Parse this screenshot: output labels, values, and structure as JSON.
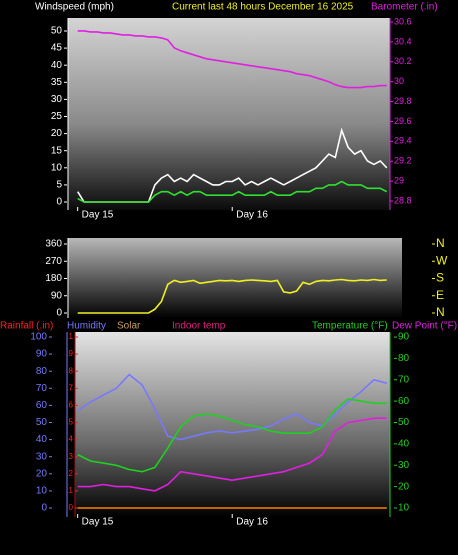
{
  "chart_data": [
    {
      "type": "line",
      "title": "Current last 48 hours December 16 2025",
      "y_label": "Windspeed (mph)",
      "y2_label": "Barometer (.in)",
      "x": [
        0,
        1,
        2,
        3,
        4,
        5,
        6,
        7,
        8,
        9,
        10,
        11,
        12,
        13,
        14,
        15,
        16,
        17,
        18,
        19,
        20,
        21,
        22,
        23,
        24,
        25,
        26,
        27,
        28,
        29,
        30,
        31,
        32,
        33,
        34,
        35,
        36,
        37,
        38,
        39,
        40,
        41,
        42,
        43,
        44,
        45,
        46,
        47,
        48
      ],
      "xlim": [
        -1.5,
        48.5
      ],
      "xticks": [
        {
          "value": 0,
          "label": "Day 15"
        },
        {
          "value": 24,
          "label": "Day 16"
        }
      ],
      "ylim": [
        0,
        50
      ],
      "yticks": [
        0,
        5,
        10,
        15,
        20,
        25,
        30,
        35,
        40,
        45,
        50
      ],
      "y2lim": [
        28.8,
        30.6
      ],
      "y2ticks": [
        28.8,
        29,
        29.2,
        29.4,
        29.6,
        29.8,
        30,
        30.2,
        30.4,
        30.6
      ],
      "series": [
        {
          "color": "#ffffff",
          "values": [
            3,
            0,
            0,
            0,
            0,
            0,
            0,
            0,
            0,
            0,
            0,
            0,
            5,
            7,
            8,
            6,
            7,
            6,
            8,
            7,
            6,
            5,
            5,
            6,
            6,
            7,
            5,
            6,
            5,
            6,
            7,
            6,
            5,
            6,
            7,
            8,
            9,
            10,
            12,
            14,
            13,
            21,
            16,
            14,
            15,
            12,
            11,
            12,
            10
          ]
        },
        {
          "color": "#30e030",
          "values": [
            1,
            0,
            0,
            0,
            0,
            0,
            0,
            0,
            0,
            0,
            0,
            0,
            2,
            3,
            3,
            2,
            3,
            2,
            3,
            3,
            2,
            2,
            2,
            2,
            2,
            3,
            2,
            2,
            2,
            2,
            3,
            2,
            2,
            2,
            3,
            3,
            3,
            4,
            4,
            5,
            5,
            6,
            5,
            5,
            5,
            4,
            4,
            4,
            3
          ]
        },
        {
          "color": "#e020e0",
          "axis": "y2",
          "values": [
            30.51,
            30.51,
            30.5,
            30.5,
            30.49,
            30.49,
            30.48,
            30.47,
            30.47,
            30.46,
            30.46,
            30.45,
            30.45,
            30.44,
            30.42,
            30.34,
            30.31,
            30.29,
            30.27,
            30.25,
            30.23,
            30.22,
            30.21,
            30.2,
            30.19,
            30.18,
            30.17,
            30.16,
            30.15,
            30.14,
            30.13,
            30.12,
            30.11,
            30.1,
            30.08,
            30.07,
            30.06,
            30.04,
            30.02,
            30,
            29.97,
            29.95,
            29.94,
            29.94,
            29.94,
            29.95,
            29.95,
            29.96,
            29.96
          ]
        }
      ]
    },
    {
      "type": "line",
      "x": [
        0,
        1,
        2,
        3,
        4,
        5,
        6,
        7,
        8,
        9,
        10,
        11,
        12,
        13,
        14,
        15,
        16,
        17,
        18,
        19,
        20,
        21,
        22,
        23,
        24,
        25,
        26,
        27,
        28,
        29,
        30,
        31,
        32,
        33,
        34,
        35,
        36,
        37,
        38,
        39,
        40,
        41,
        42,
        43,
        44,
        45,
        46,
        47,
        48
      ],
      "xlim": [
        -1.5,
        48.5
      ],
      "ylim": [
        0,
        360
      ],
      "yticks": [
        0,
        90,
        180,
        270,
        360
      ],
      "y2lim": [
        0,
        360
      ],
      "y2ticks": [
        {
          "value": 0,
          "label": "N"
        },
        {
          "value": 90,
          "label": "E"
        },
        {
          "value": 180,
          "label": "S"
        },
        {
          "value": 270,
          "label": "W"
        },
        {
          "value": 360,
          "label": "N"
        }
      ],
      "series": [
        {
          "color": "#f0f020",
          "values": [
            0,
            0,
            0,
            0,
            0,
            0,
            0,
            0,
            0,
            0,
            0,
            0,
            20,
            60,
            150,
            170,
            160,
            165,
            170,
            155,
            160,
            165,
            170,
            168,
            170,
            165,
            170,
            172,
            170,
            168,
            165,
            170,
            110,
            105,
            115,
            160,
            150,
            165,
            170,
            168,
            172,
            175,
            170,
            168,
            172,
            170,
            175,
            170,
            172
          ]
        }
      ]
    },
    {
      "type": "line",
      "x": [
        0,
        2,
        4,
        6,
        8,
        10,
        12,
        14,
        16,
        18,
        20,
        22,
        24,
        26,
        28,
        30,
        32,
        34,
        36,
        38,
        40,
        42,
        44,
        46,
        48
      ],
      "xlim": [
        -1.5,
        48.5
      ],
      "xticks": [
        {
          "value": 0,
          "label": "Day 15"
        },
        {
          "value": 24,
          "label": "Day 16"
        }
      ],
      "ylim": [
        0,
        100
      ],
      "yticks": [
        0,
        10,
        20,
        30,
        40,
        50,
        60,
        70,
        80,
        90,
        100
      ],
      "y2lim": [
        10,
        90
      ],
      "y2ticks": [
        10,
        20,
        30,
        40,
        50,
        60,
        70,
        80,
        90
      ],
      "y3lim": [
        0,
        1
      ],
      "y3ticks": [
        0,
        {
          "value": 0.1,
          "label": ".1"
        },
        {
          "value": 0.2,
          "label": ".2"
        },
        {
          "value": 0.3,
          "label": ".3"
        },
        {
          "value": 0.4,
          "label": ".4"
        },
        {
          "value": 0.5,
          "label": ".5"
        },
        {
          "value": 0.6,
          "label": ".6"
        },
        {
          "value": 0.7,
          "label": ".7"
        },
        {
          "value": 0.8,
          "label": ".8"
        },
        {
          "value": 0.9,
          "label": ".9"
        },
        1
      ],
      "series": [
        {
          "name": "Rainfall (.in)",
          "color": "#ff8000",
          "axis": "y3",
          "values": [
            0,
            0,
            0,
            0,
            0,
            0,
            0,
            0,
            0,
            0,
            0,
            0,
            0,
            0,
            0,
            0,
            0,
            0,
            0,
            0,
            0,
            0,
            0,
            0,
            0
          ]
        },
        {
          "name": "Humidity",
          "color": "#7878ff",
          "values": [
            57,
            62,
            66,
            70,
            78,
            72,
            58,
            42,
            40,
            42,
            44,
            45,
            44,
            45,
            46,
            48,
            52,
            55,
            50,
            48,
            55,
            62,
            68,
            75,
            73
          ]
        },
        {
          "name": "Solar",
          "color": "#c8a060",
          "values": [
            null,
            null,
            null,
            null,
            null,
            null,
            null,
            null,
            null,
            null,
            null,
            null,
            null,
            null,
            null,
            null,
            null,
            null,
            null,
            null,
            null,
            null,
            null,
            null,
            null
          ]
        },
        {
          "name": "Indoor temp",
          "color": "#e0207f",
          "axis": "y2",
          "values": [
            null,
            null,
            null,
            null,
            null,
            null,
            null,
            null,
            null,
            null,
            null,
            null,
            null,
            null,
            null,
            null,
            null,
            null,
            null,
            null,
            null,
            null,
            null,
            null,
            null
          ]
        },
        {
          "name": "Temperature (°F)",
          "color": "#20d020",
          "axis": "y2",
          "values": [
            35,
            32,
            31,
            30,
            28,
            27,
            29,
            38,
            48,
            53,
            54,
            53,
            51,
            49,
            48,
            46,
            45,
            45,
            45,
            48,
            56,
            61,
            60,
            59,
            59
          ]
        },
        {
          "name": "Dew Point (°F)",
          "color": "#e020e0",
          "axis": "y2",
          "values": [
            20,
            20,
            21,
            20,
            20,
            19,
            18,
            21,
            27,
            26,
            25,
            24,
            23,
            24,
            25,
            26,
            27,
            29,
            31,
            35,
            46,
            50,
            51,
            52,
            52
          ]
        }
      ]
    }
  ]
}
